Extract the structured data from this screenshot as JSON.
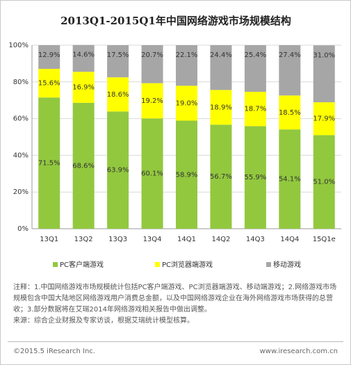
{
  "chart_data": {
    "type": "stacked_bar",
    "title": "2013Q1-2015Q1年中国网络游戏市场规模结构",
    "categories": [
      "13Q1",
      "13Q2",
      "13Q3",
      "13Q4",
      "14Q1",
      "14Q2",
      "14Q3",
      "14Q4",
      "15Q1e"
    ],
    "series": [
      {
        "name": "PC客户端游戏",
        "color": "#92c83e",
        "values": [
          71.5,
          68.6,
          63.9,
          60.1,
          58.9,
          56.7,
          55.9,
          54.1,
          51.0
        ],
        "value_labels": [
          "71.5%",
          "68.6%",
          "63.9%",
          "60.1%",
          "58.9%",
          "56.7%",
          "55.9%",
          "54.1%",
          "51.0%"
        ]
      },
      {
        "name": "PC浏览器端游戏",
        "color": "#ffff00",
        "values": [
          15.6,
          16.9,
          18.6,
          19.2,
          19.0,
          18.9,
          18.7,
          18.5,
          17.9
        ],
        "value_labels": [
          "15.6%",
          "16.9%",
          "18.6%",
          "19.2%",
          "19.0%",
          "18.9%",
          "18.7%",
          "18.5%",
          "17.9%"
        ]
      },
      {
        "name": "移动游戏",
        "color": "#a6a6a6",
        "values": [
          12.9,
          14.6,
          17.5,
          20.7,
          22.1,
          24.4,
          25.4,
          27.4,
          31.0
        ],
        "value_labels": [
          "12.9%",
          "14.6%",
          "17.5%",
          "20.7%",
          "22.1%",
          "24.4%",
          "25.4%",
          "27.4%",
          "31.0%"
        ]
      }
    ],
    "ylim": [
      0,
      100
    ],
    "yticks": [
      {
        "value": 0,
        "label": "0%"
      },
      {
        "value": 20,
        "label": "20%"
      },
      {
        "value": 40,
        "label": "40%"
      },
      {
        "value": 60,
        "label": "60%"
      },
      {
        "value": 80,
        "label": "80%"
      },
      {
        "value": 100,
        "label": "100%"
      }
    ],
    "grid": true,
    "legend": "bottom"
  },
  "note": "注释：1.中国网络游戏市场规模统计包括PC客户端游戏、PC浏览器端游戏、移动端游戏；2.网络游戏市场规模包含中国大陆地区网络游戏用户消费总金额，以及中国网络游戏企业在海外网络游戏市场获得的总营收；3.部分数据将在艾瑞2014年网络游戏相关报告中做出调整。",
  "source": "来源：综合企业财报及专家访谈，根据艾瑞统计模型核算。",
  "footer": {
    "copyright": "©2015.5 iResearch Inc.",
    "website": "www.iresearch.com.cn"
  }
}
